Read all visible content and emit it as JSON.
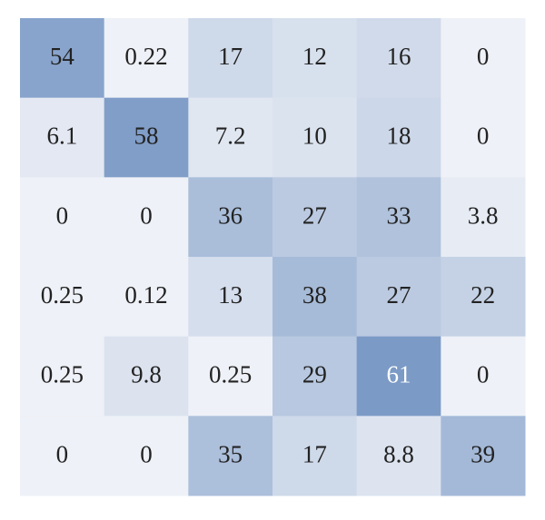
{
  "chart_data": {
    "type": "heatmap",
    "values": [
      [
        54,
        0.22,
        17,
        12,
        16,
        0
      ],
      [
        6.1,
        58,
        7.2,
        10,
        18,
        0
      ],
      [
        0,
        0,
        36,
        27,
        33,
        3.8
      ],
      [
        0.25,
        0.12,
        13,
        38,
        27,
        22
      ],
      [
        0.25,
        9.8,
        0.25,
        29,
        61,
        0
      ],
      [
        0,
        0,
        35,
        17,
        8.8,
        39
      ]
    ],
    "colors": [
      "#eef1f7",
      "#7b9ac6"
    ]
  }
}
